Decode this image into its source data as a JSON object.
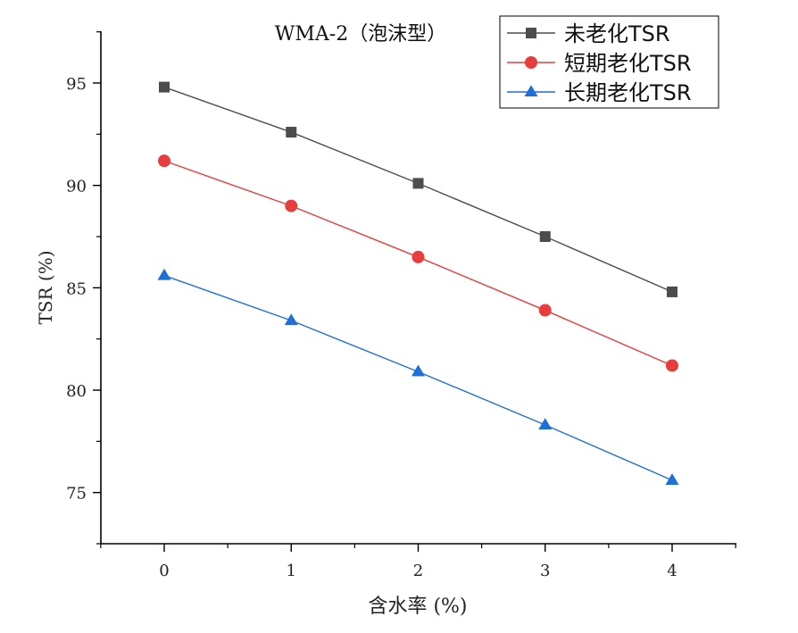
{
  "chart_data": {
    "type": "line",
    "title": "WMA-2（泡沫型）",
    "xlabel": "含水率 (%)",
    "ylabel": "TSR (%)",
    "x": [
      0,
      1,
      2,
      3,
      4
    ],
    "xlim": [
      -0.5,
      4.5
    ],
    "ylim": [
      72.5,
      97.5
    ],
    "xticks": [
      0,
      1,
      2,
      3,
      4
    ],
    "yticks": [
      75,
      80,
      85,
      90,
      95
    ],
    "legend_position": "top-right",
    "series": [
      {
        "name": "未老化TSR",
        "color": "#4d4d4d",
        "marker": "square",
        "values": [
          94.8,
          92.6,
          90.1,
          87.5,
          84.8
        ]
      },
      {
        "name": "短期老化TSR",
        "color": "#e83d3d",
        "marker": "circle",
        "values": [
          91.2,
          89.0,
          86.5,
          83.9,
          81.2
        ]
      },
      {
        "name": "长期老化TSR",
        "color": "#1f6fd6",
        "marker": "triangle",
        "values": [
          85.6,
          83.4,
          80.9,
          78.3,
          75.6
        ]
      }
    ]
  }
}
